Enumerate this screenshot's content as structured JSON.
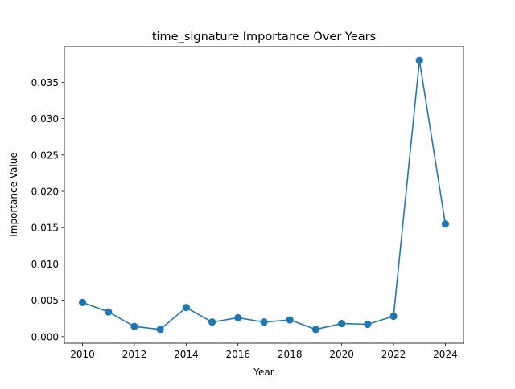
{
  "chart_data": {
    "type": "line",
    "title": "time_signature Importance Over Years",
    "xlabel": "Year",
    "ylabel": "Importance Value",
    "x": [
      2010,
      2011,
      2012,
      2013,
      2014,
      2015,
      2016,
      2017,
      2018,
      2019,
      2020,
      2021,
      2022,
      2023,
      2024
    ],
    "series": [
      {
        "values": [
          0.0047,
          0.0034,
          0.0014,
          0.001,
          0.004,
          0.002,
          0.0026,
          0.002,
          0.0023,
          0.001,
          0.0018,
          0.0017,
          0.0028,
          0.038,
          0.0155
        ],
        "color": "#1f77b4",
        "marker": "circle"
      }
    ],
    "xlim": [
      2009.3,
      2024.7
    ],
    "ylim": [
      -0.0009,
      0.0399
    ],
    "xticks": [
      2010,
      2012,
      2014,
      2016,
      2018,
      2020,
      2022,
      2024
    ],
    "xtick_labels": [
      "2010",
      "2012",
      "2014",
      "2016",
      "2018",
      "2020",
      "2022",
      "2024"
    ],
    "yticks": [
      0.0,
      0.005,
      0.01,
      0.015,
      0.02,
      0.025,
      0.03,
      0.035
    ],
    "ytick_labels": [
      "0.000",
      "0.005",
      "0.010",
      "0.015",
      "0.020",
      "0.025",
      "0.030",
      "0.035"
    ],
    "grid": false,
    "legend": false
  }
}
